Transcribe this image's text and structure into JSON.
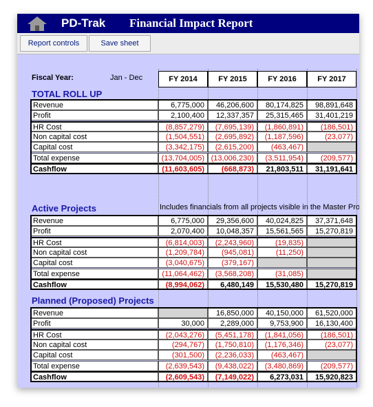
{
  "header": {
    "app_name": "PD-Trak",
    "title": "Financial Impact Report"
  },
  "toolbar": {
    "buttons": [
      "Report controls",
      "Save sheet"
    ]
  },
  "fiscal_year_label": "Fiscal Year:",
  "fiscal_year_range": "Jan - Dec",
  "columns": [
    "FY 2014",
    "FY 2015",
    "FY 2016",
    "FY 2017"
  ],
  "sections": [
    {
      "title": "TOTAL ROLL UP",
      "rows": [
        {
          "label": "Revenue",
          "values": [
            "6,775,000",
            "46,206,600",
            "80,174,825",
            "98,891,648"
          ]
        },
        {
          "label": "Profit",
          "values": [
            "2,100,400",
            "12,337,357",
            "25,315,465",
            "31,401,219"
          ]
        },
        {
          "label": "HR Cost",
          "values": [
            "(8,857,279)",
            "(7,695,139)",
            "(1,860,891)",
            "(186,501)"
          ]
        },
        {
          "label": "Non capital cost",
          "values": [
            "(1,504,551)",
            "(2,695,892)",
            "(1,187,596)",
            "(23,077)"
          ]
        },
        {
          "label": "Capital cost",
          "values": [
            "(3,342,175)",
            "(2,615,200)",
            "(463,467)",
            null
          ]
        },
        {
          "label": "Total expense",
          "values": [
            "(13,704,005)",
            "(13,006,230)",
            "(3,511,954)",
            "(209,577)"
          ]
        },
        {
          "label": "Cashflow",
          "values": [
            "(11,603,605)",
            "(668,873)",
            "21,803,511",
            "31,191,641"
          ]
        }
      ]
    },
    {
      "title": "Active Projects",
      "note": "Includes financials from all projects visible in the Master Proj",
      "rows": [
        {
          "label": "Revenue",
          "values": [
            "6,775,000",
            "29,356,600",
            "40,024,825",
            "37,371,648"
          ]
        },
        {
          "label": "Profit",
          "values": [
            "2,070,400",
            "10,048,357",
            "15,561,565",
            "15,270,819"
          ]
        },
        {
          "label": "HR Cost",
          "values": [
            "(6,814,003)",
            "(2,243,960)",
            "(19,835)",
            null
          ]
        },
        {
          "label": "Non capital cost",
          "values": [
            "(1,209,784)",
            "(945,081)",
            "(11,250)",
            null
          ]
        },
        {
          "label": "Capital cost",
          "values": [
            "(3,040,675)",
            "(379,167)",
            null,
            null
          ]
        },
        {
          "label": "Total expense",
          "values": [
            "(11,064,462)",
            "(3,568,208)",
            "(31,085)",
            null
          ]
        },
        {
          "label": "Cashflow",
          "values": [
            "(8,994,062)",
            "6,480,149",
            "15,530,480",
            "15,270,819"
          ]
        }
      ]
    },
    {
      "title": "Planned (Proposed) Projects",
      "rows": [
        {
          "label": "Revenue",
          "values": [
            null,
            "16,850,000",
            "40,150,000",
            "61,520,000"
          ]
        },
        {
          "label": "Profit",
          "values": [
            "30,000",
            "2,289,000",
            "9,753,900",
            "16,130,400"
          ]
        },
        {
          "label": "HR Cost",
          "values": [
            "(2,043,276)",
            "(5,451,178)",
            "(1,841,056)",
            "(186,501)"
          ]
        },
        {
          "label": "Non capital cost",
          "values": [
            "(294,767)",
            "(1,750,810)",
            "(1,176,346)",
            "(23,077)"
          ]
        },
        {
          "label": "Capital cost",
          "values": [
            "(301,500)",
            "(2,236,033)",
            "(463,467)",
            null
          ]
        },
        {
          "label": "Total expense",
          "values": [
            "(2,639,543)",
            "(9,438,022)",
            "(3,480,869)",
            "(209,577)"
          ]
        },
        {
          "label": "Cashflow",
          "values": [
            "(2,609,543)",
            "(7,149,022)",
            "6,273,031",
            "15,920,823"
          ]
        }
      ]
    }
  ]
}
